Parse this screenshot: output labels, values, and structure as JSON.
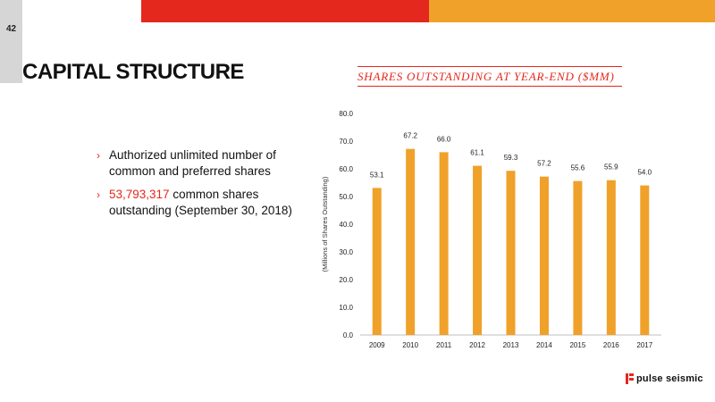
{
  "slide": {
    "page_number": "42",
    "title": "CAPITAL STRUCTURE",
    "bullets": [
      {
        "text": "Authorized unlimited  number of common and preferred shares"
      },
      {
        "highlight": "53,793,317",
        "text": " common shares outstanding (September 30, 2018)"
      }
    ]
  },
  "brand": {
    "logo_text": "pulse seismic",
    "red": "#e4281d",
    "orange": "#f0a12a"
  },
  "chart_data": {
    "type": "bar",
    "title": "SHARES OUTSTANDING AT YEAR-END ($MM)",
    "ylabel": "(Millions of Shares Outstanding)",
    "xlabel": "",
    "categories": [
      "2009",
      "2010",
      "2011",
      "2012",
      "2013",
      "2014",
      "2015",
      "2016",
      "2017"
    ],
    "values": [
      53.1,
      67.2,
      66.0,
      61.1,
      59.3,
      57.2,
      55.6,
      55.9,
      54.0
    ],
    "value_labels": [
      "53.1",
      "67.2",
      "66.0",
      "61.1",
      "59.3",
      "57.2",
      "55.6",
      "55.9",
      "54.0"
    ],
    "yticks": [
      "0.0",
      "10.0",
      "20.0",
      "30.0",
      "40.0",
      "50.0",
      "60.0",
      "70.0",
      "80.0"
    ],
    "ylim": [
      0,
      80
    ],
    "grid": false,
    "bar_color": "#f0a12a"
  }
}
